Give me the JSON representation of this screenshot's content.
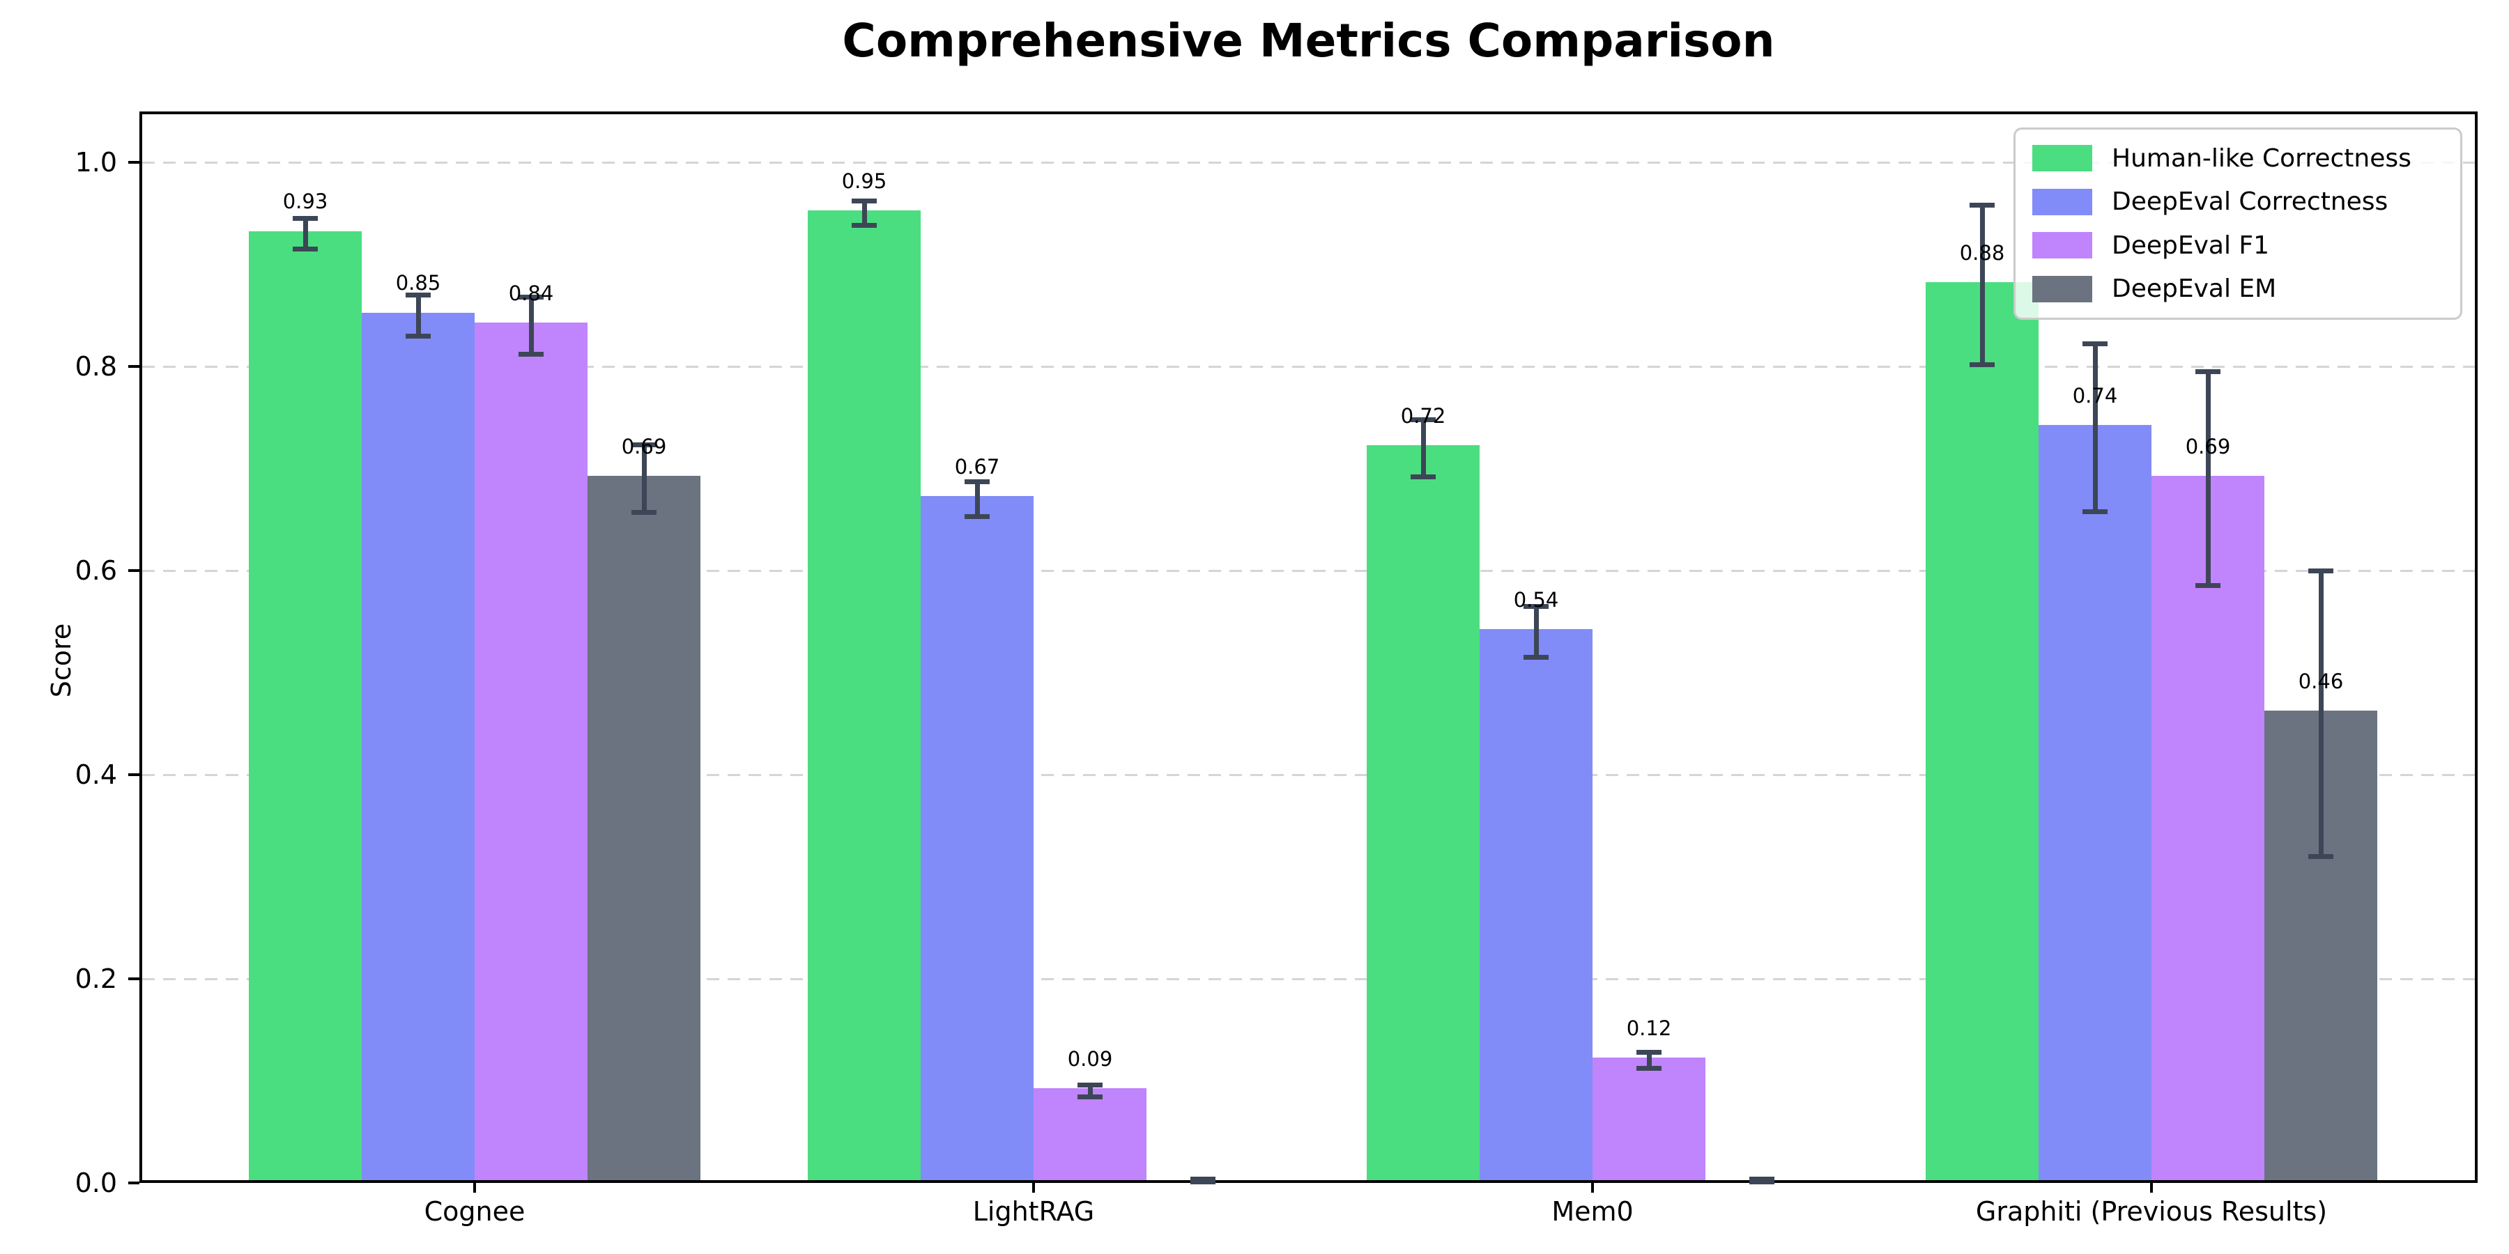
{
  "title": "Comprehensive Metrics Comparison",
  "ylabel": "Score",
  "chart_data": {
    "type": "bar",
    "title": "Comprehensive Metrics Comparison",
    "xlabel": "",
    "ylabel": "Score",
    "categories": [
      "Cognee",
      "LightRAG",
      "Mem0",
      "Graphiti (Previous Results)"
    ],
    "series": [
      {
        "name": "Human-like Correctness",
        "color": "#4ade80",
        "values": [
          0.93,
          0.95,
          0.72,
          0.88
        ],
        "errors": [
          0.015,
          0.012,
          0.028,
          0.078
        ],
        "labels": [
          "0.93",
          "0.95",
          "0.72",
          "0.88"
        ]
      },
      {
        "name": "DeepEval Correctness",
        "color": "#818cf8",
        "values": [
          0.85,
          0.67,
          0.54,
          0.74
        ],
        "errors": [
          0.02,
          0.017,
          0.025,
          0.082
        ],
        "labels": [
          "0.85",
          "0.67",
          "0.54",
          "0.74"
        ]
      },
      {
        "name": "DeepEval F1",
        "color": "#c084fc",
        "values": [
          0.84,
          0.09,
          0.12,
          0.69
        ],
        "errors": [
          0.028,
          0.006,
          0.008,
          0.105
        ],
        "labels": [
          "0.84",
          "0.09",
          "0.12",
          "0.69"
        ]
      },
      {
        "name": "DeepEval EM",
        "color": "#6b7280",
        "values": [
          0.69,
          0.0,
          0.0,
          0.46
        ],
        "errors": [
          0.033,
          0.004,
          0.004,
          0.14
        ],
        "labels": [
          "0.69",
          null,
          null,
          "0.46"
        ]
      }
    ],
    "yticks": [
      "0.0",
      "0.2",
      "0.4",
      "0.6",
      "0.8",
      "1.0"
    ],
    "ylim": [
      0,
      1.05
    ],
    "grid": "horizontal-dashed",
    "legend_position": "upper right",
    "error_bar_color": "#3d4656",
    "bar_label_color": "#000000",
    "background_color": "#ffffff"
  }
}
